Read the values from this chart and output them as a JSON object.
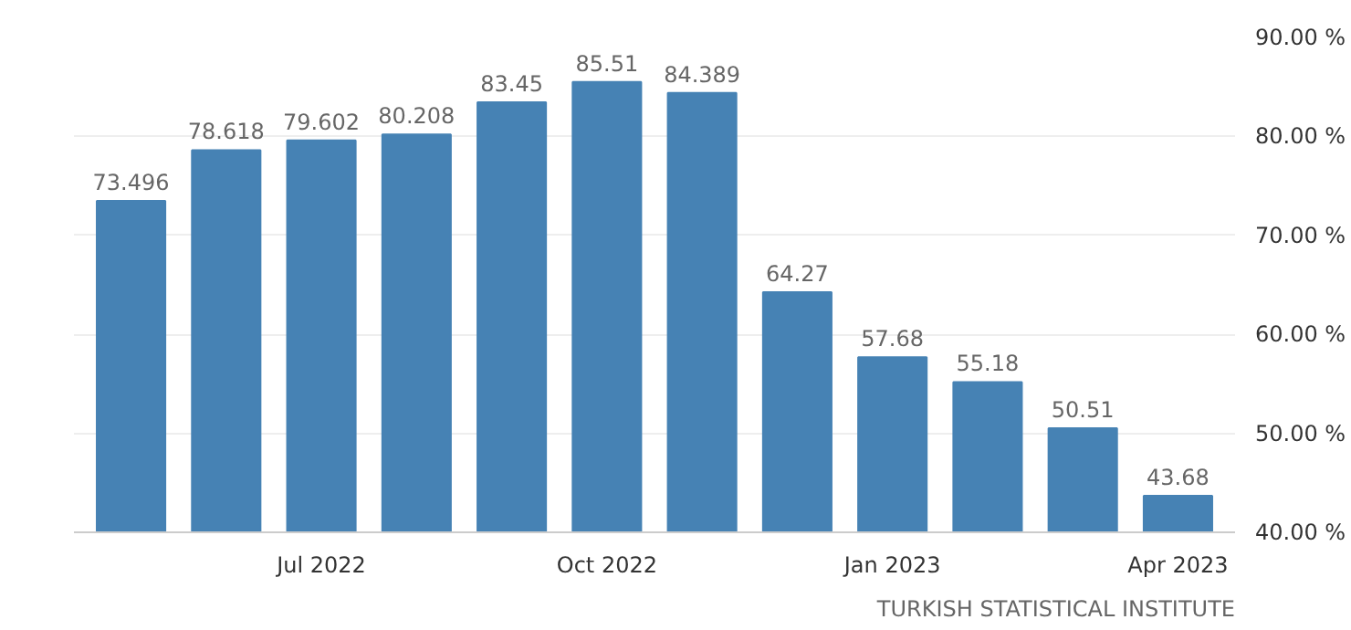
{
  "chart_data": {
    "type": "bar",
    "categories": [
      null,
      null,
      "Jul 2022",
      null,
      null,
      "Oct 2022",
      null,
      null,
      "Jan 2023",
      null,
      null,
      "Apr 2023"
    ],
    "values": [
      73.496,
      78.618,
      79.602,
      80.208,
      83.45,
      85.51,
      84.389,
      64.27,
      57.68,
      55.18,
      50.51,
      43.68
    ],
    "color": "#4682b4",
    "ylim": [
      40,
      90
    ],
    "yticks": [
      {
        "value": 40,
        "label": "40.00 %"
      },
      {
        "value": 50,
        "label": "50.00 %"
      },
      {
        "value": 60,
        "label": "60.00 %"
      },
      {
        "value": 70,
        "label": "70.00 %"
      },
      {
        "value": 80,
        "label": "80.00 %"
      },
      {
        "value": 90,
        "label": "90.00 %"
      }
    ],
    "grid": "y",
    "data_labels": true,
    "annotations": [
      "TURKISH STATISTICAL INSTITUTE"
    ]
  }
}
